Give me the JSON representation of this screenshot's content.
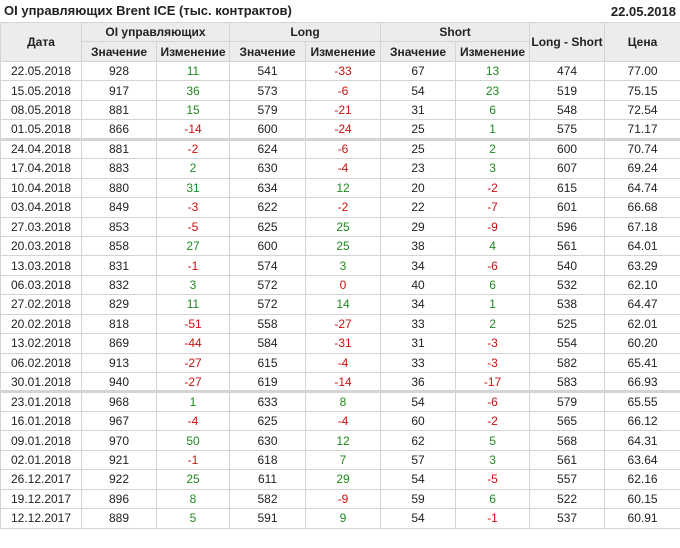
{
  "header": {
    "title": "OI управляющих Brent ICE (тыс. контрактов)",
    "date": "22.05.2018"
  },
  "columns": {
    "date": "Дата",
    "oi": "OI управляющих",
    "long": "Long",
    "short": "Short",
    "long_short": "Long - Short",
    "price": "Цена",
    "value": "Значение",
    "change": "Изменение"
  },
  "colors": {
    "positive": "#1f8a1f",
    "negative": "#cc1010"
  },
  "rows": [
    [
      "22.05.2018",
      "928",
      "11",
      "541",
      "-33",
      "67",
      "13",
      "474",
      "77.00"
    ],
    [
      "15.05.2018",
      "917",
      "36",
      "573",
      "-6",
      "54",
      "23",
      "519",
      "75.15"
    ],
    [
      "08.05.2018",
      "881",
      "15",
      "579",
      "-21",
      "31",
      "6",
      "548",
      "72.54"
    ],
    [
      "01.05.2018",
      "866",
      "-14",
      "600",
      "-24",
      "25",
      "1",
      "575",
      "71.17"
    ],
    [
      "24.04.2018",
      "881",
      "-2",
      "624",
      "-6",
      "25",
      "2",
      "600",
      "70.74"
    ],
    [
      "17.04.2018",
      "883",
      "2",
      "630",
      "-4",
      "23",
      "3",
      "607",
      "69.24"
    ],
    [
      "10.04.2018",
      "880",
      "31",
      "634",
      "12",
      "20",
      "-2",
      "615",
      "64.74"
    ],
    [
      "03.04.2018",
      "849",
      "-3",
      "622",
      "-2",
      "22",
      "-7",
      "601",
      "66.68"
    ],
    [
      "27.03.2018",
      "853",
      "-5",
      "625",
      "25",
      "29",
      "-9",
      "596",
      "67.18"
    ],
    [
      "20.03.2018",
      "858",
      "27",
      "600",
      "25",
      "38",
      "4",
      "561",
      "64.01"
    ],
    [
      "13.03.2018",
      "831",
      "-1",
      "574",
      "3",
      "34",
      "-6",
      "540",
      "63.29"
    ],
    [
      "06.03.2018",
      "832",
      "3",
      "572",
      "0",
      "40",
      "6",
      "532",
      "62.10"
    ],
    [
      "27.02.2018",
      "829",
      "11",
      "572",
      "14",
      "34",
      "1",
      "538",
      "64.47"
    ],
    [
      "20.02.2018",
      "818",
      "-51",
      "558",
      "-27",
      "33",
      "2",
      "525",
      "62.01"
    ],
    [
      "13.02.2018",
      "869",
      "-44",
      "584",
      "-31",
      "31",
      "-3",
      "554",
      "60.20"
    ],
    [
      "06.02.2018",
      "913",
      "-27",
      "615",
      "-4",
      "33",
      "-3",
      "582",
      "65.41"
    ],
    [
      "30.01.2018",
      "940",
      "-27",
      "619",
      "-14",
      "36",
      "-17",
      "583",
      "66.93"
    ],
    [
      "23.01.2018",
      "968",
      "1",
      "633",
      "8",
      "54",
      "-6",
      "579",
      "65.55"
    ],
    [
      "16.01.2018",
      "967",
      "-4",
      "625",
      "-4",
      "60",
      "-2",
      "565",
      "66.12"
    ],
    [
      "09.01.2018",
      "970",
      "50",
      "630",
      "12",
      "62",
      "5",
      "568",
      "64.31"
    ],
    [
      "02.01.2018",
      "921",
      "-1",
      "618",
      "7",
      "57",
      "3",
      "561",
      "63.64"
    ],
    [
      "26.12.2017",
      "922",
      "25",
      "611",
      "29",
      "54",
      "-5",
      "557",
      "62.16"
    ],
    [
      "19.12.2017",
      "896",
      "8",
      "582",
      "-9",
      "59",
      "6",
      "522",
      "60.15"
    ],
    [
      "12.12.2017",
      "889",
      "5",
      "591",
      "9",
      "54",
      "-1",
      "537",
      "60.91"
    ]
  ]
}
